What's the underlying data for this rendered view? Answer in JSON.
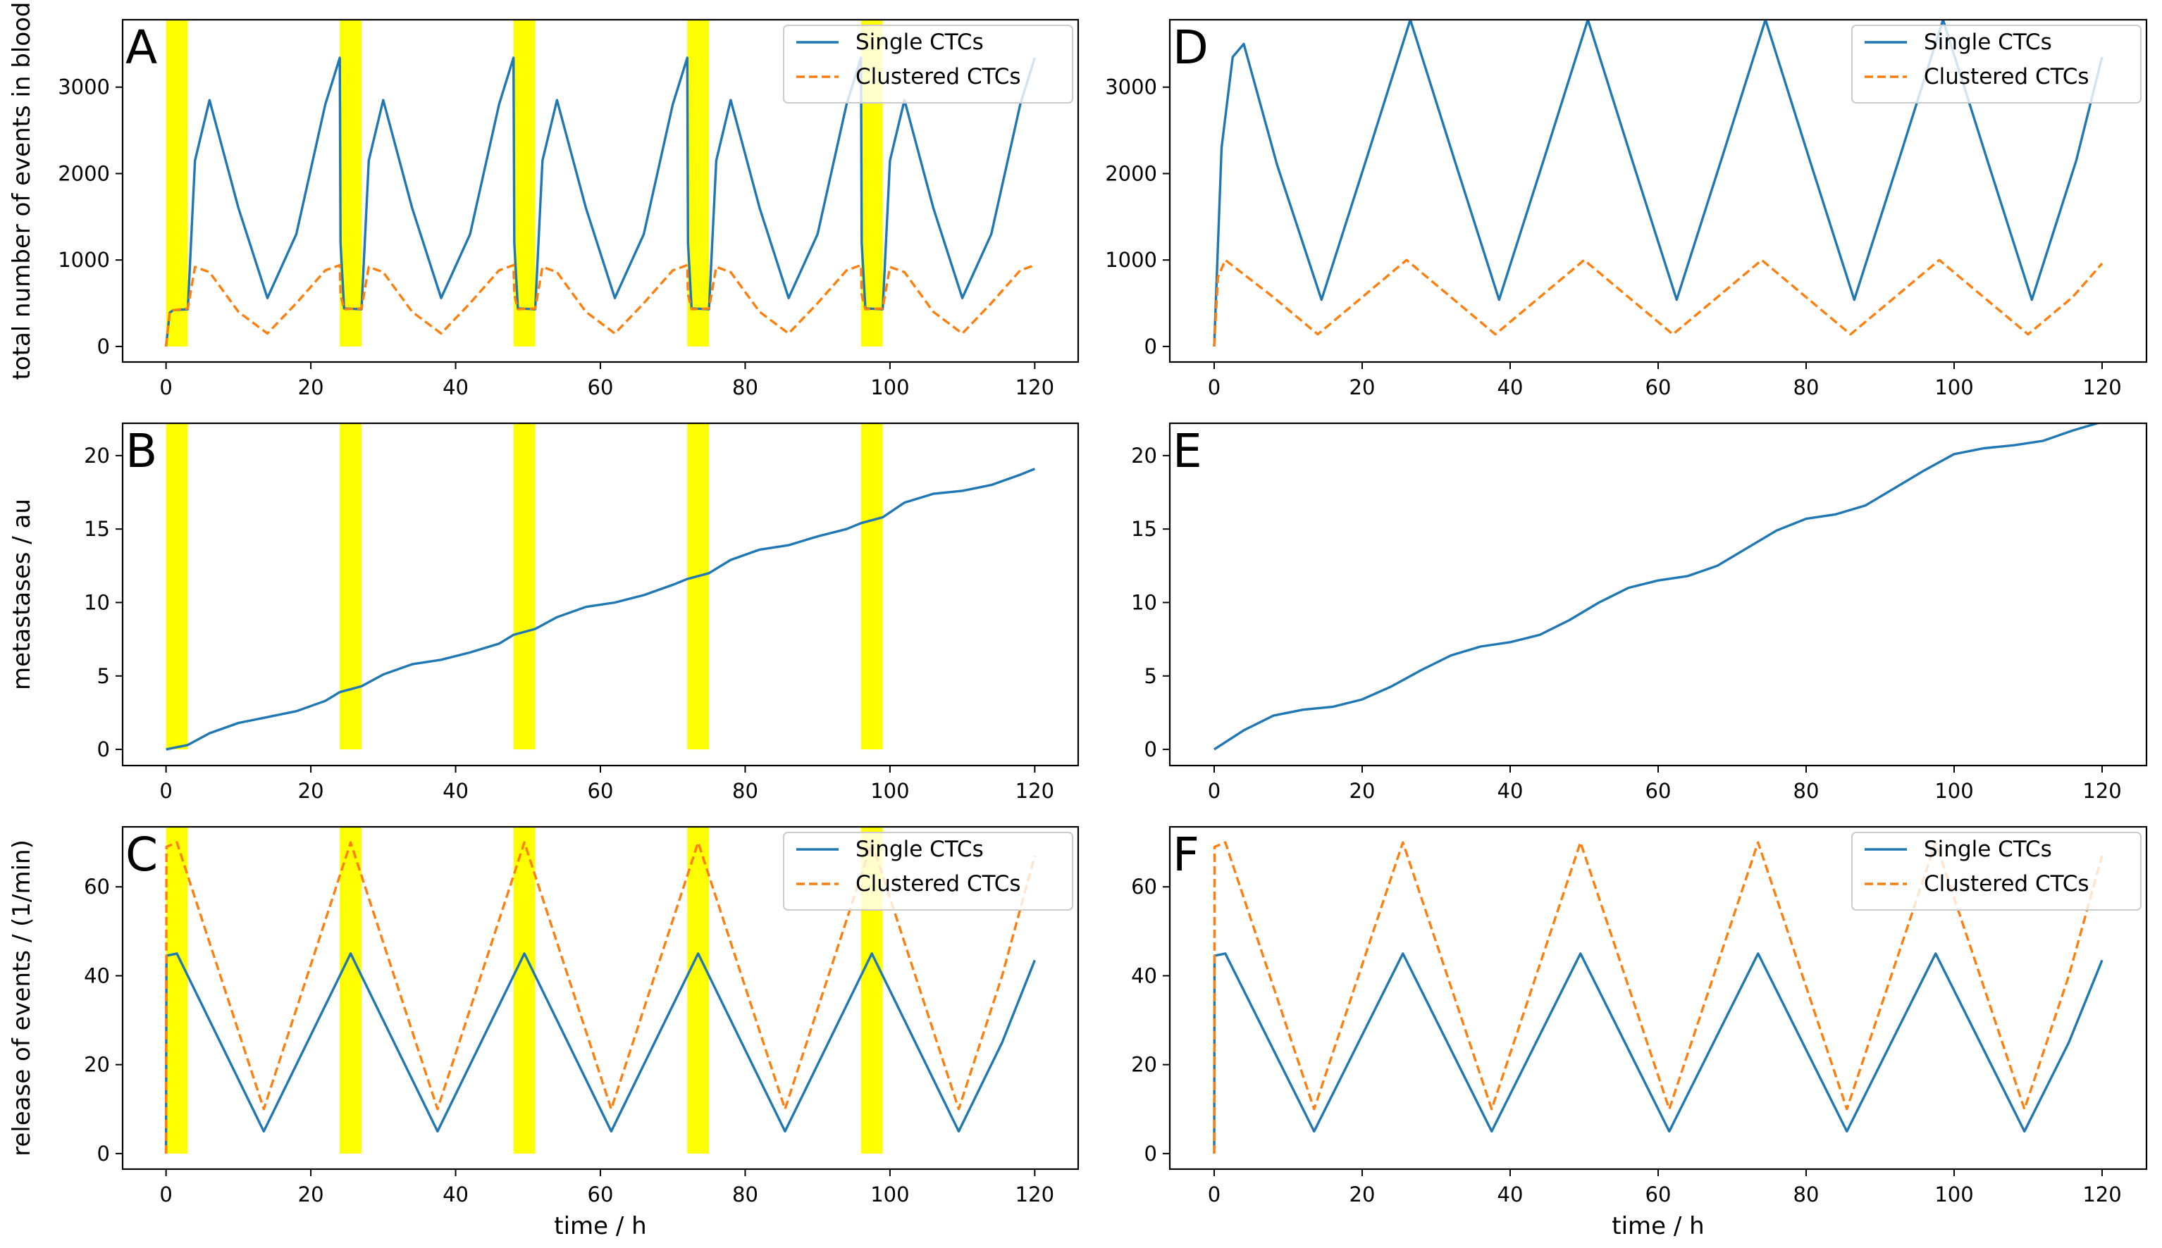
{
  "figure": {
    "x_label": "time / h",
    "legend": {
      "single": "Single CTCs",
      "clustered": "Clustered CTCs"
    },
    "colors": {
      "single": "#1f77b4",
      "clustered": "#ff7f0e",
      "highlight": "#ffff00"
    }
  },
  "chart_data": [
    {
      "type": "line",
      "panel": "A",
      "ylabel": "total number of events in blood",
      "xlabel": "",
      "xlim": [
        -6,
        126
      ],
      "ylim": [
        -180,
        3780
      ],
      "xticks": [
        "0",
        "20",
        "40",
        "60",
        "80",
        "100",
        "120"
      ],
      "yticks": [
        "0",
        "1000",
        "2000",
        "3000"
      ],
      "legend_position": "top-right",
      "highlight_intervals": [
        [
          0,
          3
        ],
        [
          24,
          27
        ],
        [
          48,
          51
        ],
        [
          72,
          75
        ],
        [
          96,
          99
        ]
      ],
      "series": [
        {
          "name": "Single CTCs",
          "style": "solid",
          "x": [
            0,
            0.5,
            1,
            3,
            4,
            6,
            10,
            14,
            18,
            22,
            24,
            24.1,
            24.6,
            27,
            28,
            30,
            34,
            38,
            42,
            46,
            48,
            48.1,
            48.6,
            51,
            52,
            54,
            58,
            62,
            66,
            70,
            72,
            72.1,
            72.6,
            75,
            76,
            78,
            82,
            86,
            90,
            94,
            96,
            96.1,
            96.6,
            99,
            100,
            102,
            106,
            110,
            114,
            118,
            120
          ],
          "y": [
            0,
            390,
            420,
            430,
            2150,
            2850,
            1600,
            560,
            1300,
            2800,
            3340,
            1200,
            440,
            430,
            2150,
            2850,
            1600,
            560,
            1300,
            2800,
            3340,
            1200,
            440,
            430,
            2150,
            2850,
            1600,
            560,
            1300,
            2800,
            3340,
            1200,
            440,
            430,
            2150,
            2850,
            1600,
            560,
            1300,
            2800,
            3340,
            1200,
            440,
            430,
            2150,
            2850,
            1600,
            560,
            1300,
            2800,
            3340
          ]
        },
        {
          "name": "Clustered CTCs",
          "style": "dashed",
          "x": [
            0,
            0.5,
            1,
            3,
            4,
            6,
            10,
            14,
            18,
            22,
            24,
            24.1,
            24.6,
            27,
            28,
            30,
            34,
            38,
            42,
            46,
            48,
            48.1,
            48.6,
            51,
            52,
            54,
            58,
            62,
            66,
            70,
            72,
            72.1,
            72.6,
            75,
            76,
            78,
            82,
            86,
            90,
            94,
            96,
            96.1,
            96.6,
            99,
            100,
            102,
            106,
            110,
            114,
            118,
            120
          ],
          "y": [
            0,
            400,
            420,
            440,
            920,
            860,
            400,
            150,
            500,
            880,
            940,
            600,
            430,
            440,
            920,
            860,
            400,
            150,
            500,
            880,
            940,
            600,
            430,
            440,
            920,
            860,
            400,
            150,
            500,
            880,
            940,
            600,
            430,
            440,
            920,
            860,
            400,
            150,
            500,
            880,
            940,
            600,
            430,
            440,
            920,
            860,
            400,
            150,
            500,
            880,
            940
          ]
        }
      ]
    },
    {
      "type": "line",
      "panel": "B",
      "ylabel": "metastases / au",
      "xlabel": "",
      "xlim": [
        -6,
        126
      ],
      "ylim": [
        -1.1,
        22.2
      ],
      "xticks": [
        "0",
        "20",
        "40",
        "60",
        "80",
        "100",
        "120"
      ],
      "yticks": [
        "0",
        "5",
        "10",
        "15",
        "20"
      ],
      "highlight_intervals": [
        [
          0,
          3
        ],
        [
          24,
          27
        ],
        [
          48,
          51
        ],
        [
          72,
          75
        ],
        [
          96,
          99
        ]
      ],
      "series": [
        {
          "name": "Single CTCs",
          "style": "solid",
          "x": [
            0,
            3,
            6,
            10,
            14,
            18,
            22,
            24,
            27,
            30,
            34,
            38,
            42,
            46,
            48,
            51,
            54,
            58,
            62,
            66,
            70,
            72,
            75,
            78,
            82,
            86,
            90,
            94,
            96,
            99,
            102,
            106,
            110,
            114,
            118,
            120
          ],
          "y": [
            0,
            0.3,
            1.1,
            1.8,
            2.2,
            2.6,
            3.3,
            3.9,
            4.3,
            5.1,
            5.8,
            6.1,
            6.6,
            7.2,
            7.8,
            8.2,
            9.0,
            9.7,
            10.0,
            10.5,
            11.2,
            11.6,
            12.0,
            12.9,
            13.6,
            13.9,
            14.5,
            15.0,
            15.4,
            15.8,
            16.8,
            17.4,
            17.6,
            18.0,
            18.7,
            19.1
          ]
        }
      ]
    },
    {
      "type": "line",
      "panel": "C",
      "ylabel": "release of events / (1/min)",
      "xlabel": "time / h",
      "xlim": [
        -6,
        126
      ],
      "ylim": [
        -3.5,
        73.5
      ],
      "xticks": [
        "0",
        "20",
        "40",
        "60",
        "80",
        "100",
        "120"
      ],
      "yticks": [
        "0",
        "20",
        "40",
        "60"
      ],
      "legend_position": "top-right",
      "highlight_intervals": [
        [
          0,
          3
        ],
        [
          24,
          27
        ],
        [
          48,
          51
        ],
        [
          72,
          75
        ],
        [
          96,
          99
        ]
      ],
      "series": [
        {
          "name": "Single CTCs",
          "style": "solid",
          "x": [
            0,
            0.05,
            1.5,
            7.5,
            13.5,
            19.5,
            25.5,
            31.5,
            37.5,
            43.5,
            49.5,
            55.5,
            61.5,
            67.5,
            73.5,
            79.5,
            85.5,
            91.5,
            97.5,
            103.5,
            109.5,
            115.5,
            120
          ],
          "y": [
            0,
            44.5,
            45,
            25,
            5,
            25,
            45,
            25,
            5,
            25,
            45,
            25,
            5,
            25,
            45,
            25,
            5,
            25,
            45,
            25,
            5,
            25,
            43.5
          ]
        },
        {
          "name": "Clustered CTCs",
          "style": "dashed",
          "x": [
            0,
            0.05,
            1.5,
            7.5,
            13.5,
            19.5,
            25.5,
            31.5,
            37.5,
            43.5,
            49.5,
            55.5,
            61.5,
            67.5,
            73.5,
            79.5,
            85.5,
            91.5,
            97.5,
            103.5,
            109.5,
            115.5,
            120
          ],
          "y": [
            0,
            69,
            70,
            40,
            10,
            40,
            70,
            40,
            10,
            40,
            70,
            40,
            10,
            40,
            70,
            40,
            10,
            40,
            70,
            40,
            10,
            40,
            67
          ]
        }
      ]
    },
    {
      "type": "line",
      "panel": "D",
      "ylabel": "",
      "xlabel": "",
      "xlim": [
        -6,
        126
      ],
      "ylim": [
        -180,
        3780
      ],
      "xticks": [
        "0",
        "20",
        "40",
        "60",
        "80",
        "100",
        "120"
      ],
      "yticks": [
        "0",
        "1000",
        "2000",
        "3000"
      ],
      "legend_position": "top-right",
      "highlight_intervals": [],
      "series": [
        {
          "name": "Single CTCs",
          "style": "solid",
          "x": [
            0,
            1,
            2.5,
            4,
            8.5,
            14.5,
            20.5,
            26.5,
            32.5,
            38.5,
            44.5,
            50.5,
            56.5,
            62.5,
            68.5,
            74.5,
            80.5,
            86.5,
            92.5,
            98.5,
            104.5,
            110.5,
            116.5,
            120
          ],
          "y": [
            0,
            2300,
            3350,
            3500,
            2100,
            540,
            2150,
            3780,
            2150,
            540,
            2150,
            3780,
            2150,
            540,
            2150,
            3780,
            2150,
            540,
            2150,
            3780,
            2150,
            540,
            2150,
            3350
          ]
        },
        {
          "name": "Clustered CTCs",
          "style": "dashed",
          "x": [
            0,
            0.5,
            1.5,
            8,
            14,
            20,
            26,
            32,
            38,
            44,
            50,
            56,
            62,
            68,
            74,
            80,
            86,
            92,
            98,
            104,
            110,
            116,
            120
          ],
          "y": [
            0,
            800,
            1000,
            570,
            140,
            570,
            1000,
            570,
            140,
            570,
            1000,
            570,
            140,
            570,
            1000,
            570,
            140,
            570,
            1000,
            570,
            140,
            570,
            960
          ]
        }
      ]
    },
    {
      "type": "line",
      "panel": "E",
      "ylabel": "",
      "xlabel": "",
      "xlim": [
        -6,
        126
      ],
      "ylim": [
        -1.1,
        22.2
      ],
      "xticks": [
        "0",
        "20",
        "40",
        "60",
        "80",
        "100",
        "120"
      ],
      "yticks": [
        "0",
        "5",
        "10",
        "15",
        "20"
      ],
      "highlight_intervals": [],
      "series": [
        {
          "name": "Single CTCs",
          "style": "solid",
          "x": [
            0,
            4,
            8,
            12,
            16,
            20,
            24,
            28,
            32,
            36,
            40,
            44,
            48,
            52,
            56,
            60,
            64,
            68,
            72,
            76,
            80,
            84,
            88,
            92,
            96,
            100,
            104,
            108,
            112,
            116,
            120
          ],
          "y": [
            0,
            1.3,
            2.3,
            2.7,
            2.9,
            3.4,
            4.3,
            5.4,
            6.4,
            7.0,
            7.3,
            7.8,
            8.8,
            10.0,
            11.0,
            11.5,
            11.8,
            12.5,
            13.7,
            14.9,
            15.7,
            16.0,
            16.6,
            17.8,
            19.0,
            20.1,
            20.5,
            20.7,
            21.0,
            21.7,
            22.3
          ]
        }
      ]
    },
    {
      "type": "line",
      "panel": "F",
      "ylabel": "",
      "xlabel": "time / h",
      "xlim": [
        -6,
        126
      ],
      "ylim": [
        -3.5,
        73.5
      ],
      "xticks": [
        "0",
        "20",
        "40",
        "60",
        "80",
        "100",
        "120"
      ],
      "yticks": [
        "0",
        "20",
        "40",
        "60"
      ],
      "legend_position": "top-right",
      "highlight_intervals": [],
      "series": [
        {
          "name": "Single CTCs",
          "style": "solid",
          "x": [
            0,
            0.05,
            1.5,
            7.5,
            13.5,
            19.5,
            25.5,
            31.5,
            37.5,
            43.5,
            49.5,
            55.5,
            61.5,
            67.5,
            73.5,
            79.5,
            85.5,
            91.5,
            97.5,
            103.5,
            109.5,
            115.5,
            120
          ],
          "y": [
            0,
            44.5,
            45,
            25,
            5,
            25,
            45,
            25,
            5,
            25,
            45,
            25,
            5,
            25,
            45,
            25,
            5,
            25,
            45,
            25,
            5,
            25,
            43.5
          ]
        },
        {
          "name": "Clustered CTCs",
          "style": "dashed",
          "x": [
            0,
            0.05,
            1.5,
            7.5,
            13.5,
            19.5,
            25.5,
            31.5,
            37.5,
            43.5,
            49.5,
            55.5,
            61.5,
            67.5,
            73.5,
            79.5,
            85.5,
            91.5,
            97.5,
            103.5,
            109.5,
            115.5,
            120
          ],
          "y": [
            0,
            69,
            70,
            40,
            10,
            40,
            70,
            40,
            10,
            40,
            70,
            40,
            10,
            40,
            70,
            40,
            10,
            40,
            70,
            40,
            10,
            40,
            67
          ]
        }
      ]
    }
  ]
}
